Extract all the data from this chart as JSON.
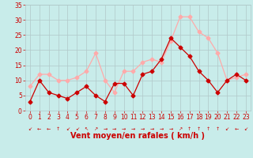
{
  "x": [
    0,
    1,
    2,
    3,
    4,
    5,
    6,
    7,
    8,
    9,
    10,
    11,
    12,
    13,
    14,
    15,
    16,
    17,
    18,
    19,
    20,
    21,
    22,
    23
  ],
  "mean_wind": [
    3,
    10,
    6,
    5,
    4,
    6,
    8,
    5,
    3,
    9,
    9,
    5,
    12,
    13,
    17,
    24,
    21,
    18,
    13,
    10,
    6,
    10,
    12,
    10
  ],
  "gusts": [
    8,
    12,
    12,
    10,
    10,
    11,
    13,
    19,
    10,
    6,
    13,
    13,
    16,
    17,
    16,
    23,
    31,
    31,
    26,
    24,
    19,
    10,
    11,
    12
  ],
  "mean_color": "#cc0000",
  "gust_color": "#ffaaaa",
  "bg_color": "#c8ecea",
  "grid_color": "#b0c8c8",
  "xlabel": "Vent moyen/en rafales ( km/h )",
  "ylim": [
    0,
    35
  ],
  "yticks": [
    0,
    5,
    10,
    15,
    20,
    25,
    30,
    35
  ],
  "xticks": [
    0,
    1,
    2,
    3,
    4,
    5,
    6,
    7,
    8,
    9,
    10,
    11,
    12,
    13,
    14,
    15,
    16,
    17,
    18,
    19,
    20,
    21,
    22,
    23
  ],
  "marker": "D",
  "markersize": 2.5,
  "linewidth": 0.9,
  "xlabel_color": "#cc0000",
  "tick_color": "#cc0000",
  "tick_fontsize": 5.5,
  "xlabel_fontsize": 7,
  "arrow_chars": [
    "↙",
    "←",
    "←",
    "↑",
    "↙",
    "↙",
    "↖",
    "↗",
    "→",
    "→",
    "→",
    "→",
    "→",
    "→",
    "→",
    "→",
    "↗",
    "↑",
    "↑",
    "↑",
    "↑",
    "↙",
    "←",
    "↙"
  ]
}
